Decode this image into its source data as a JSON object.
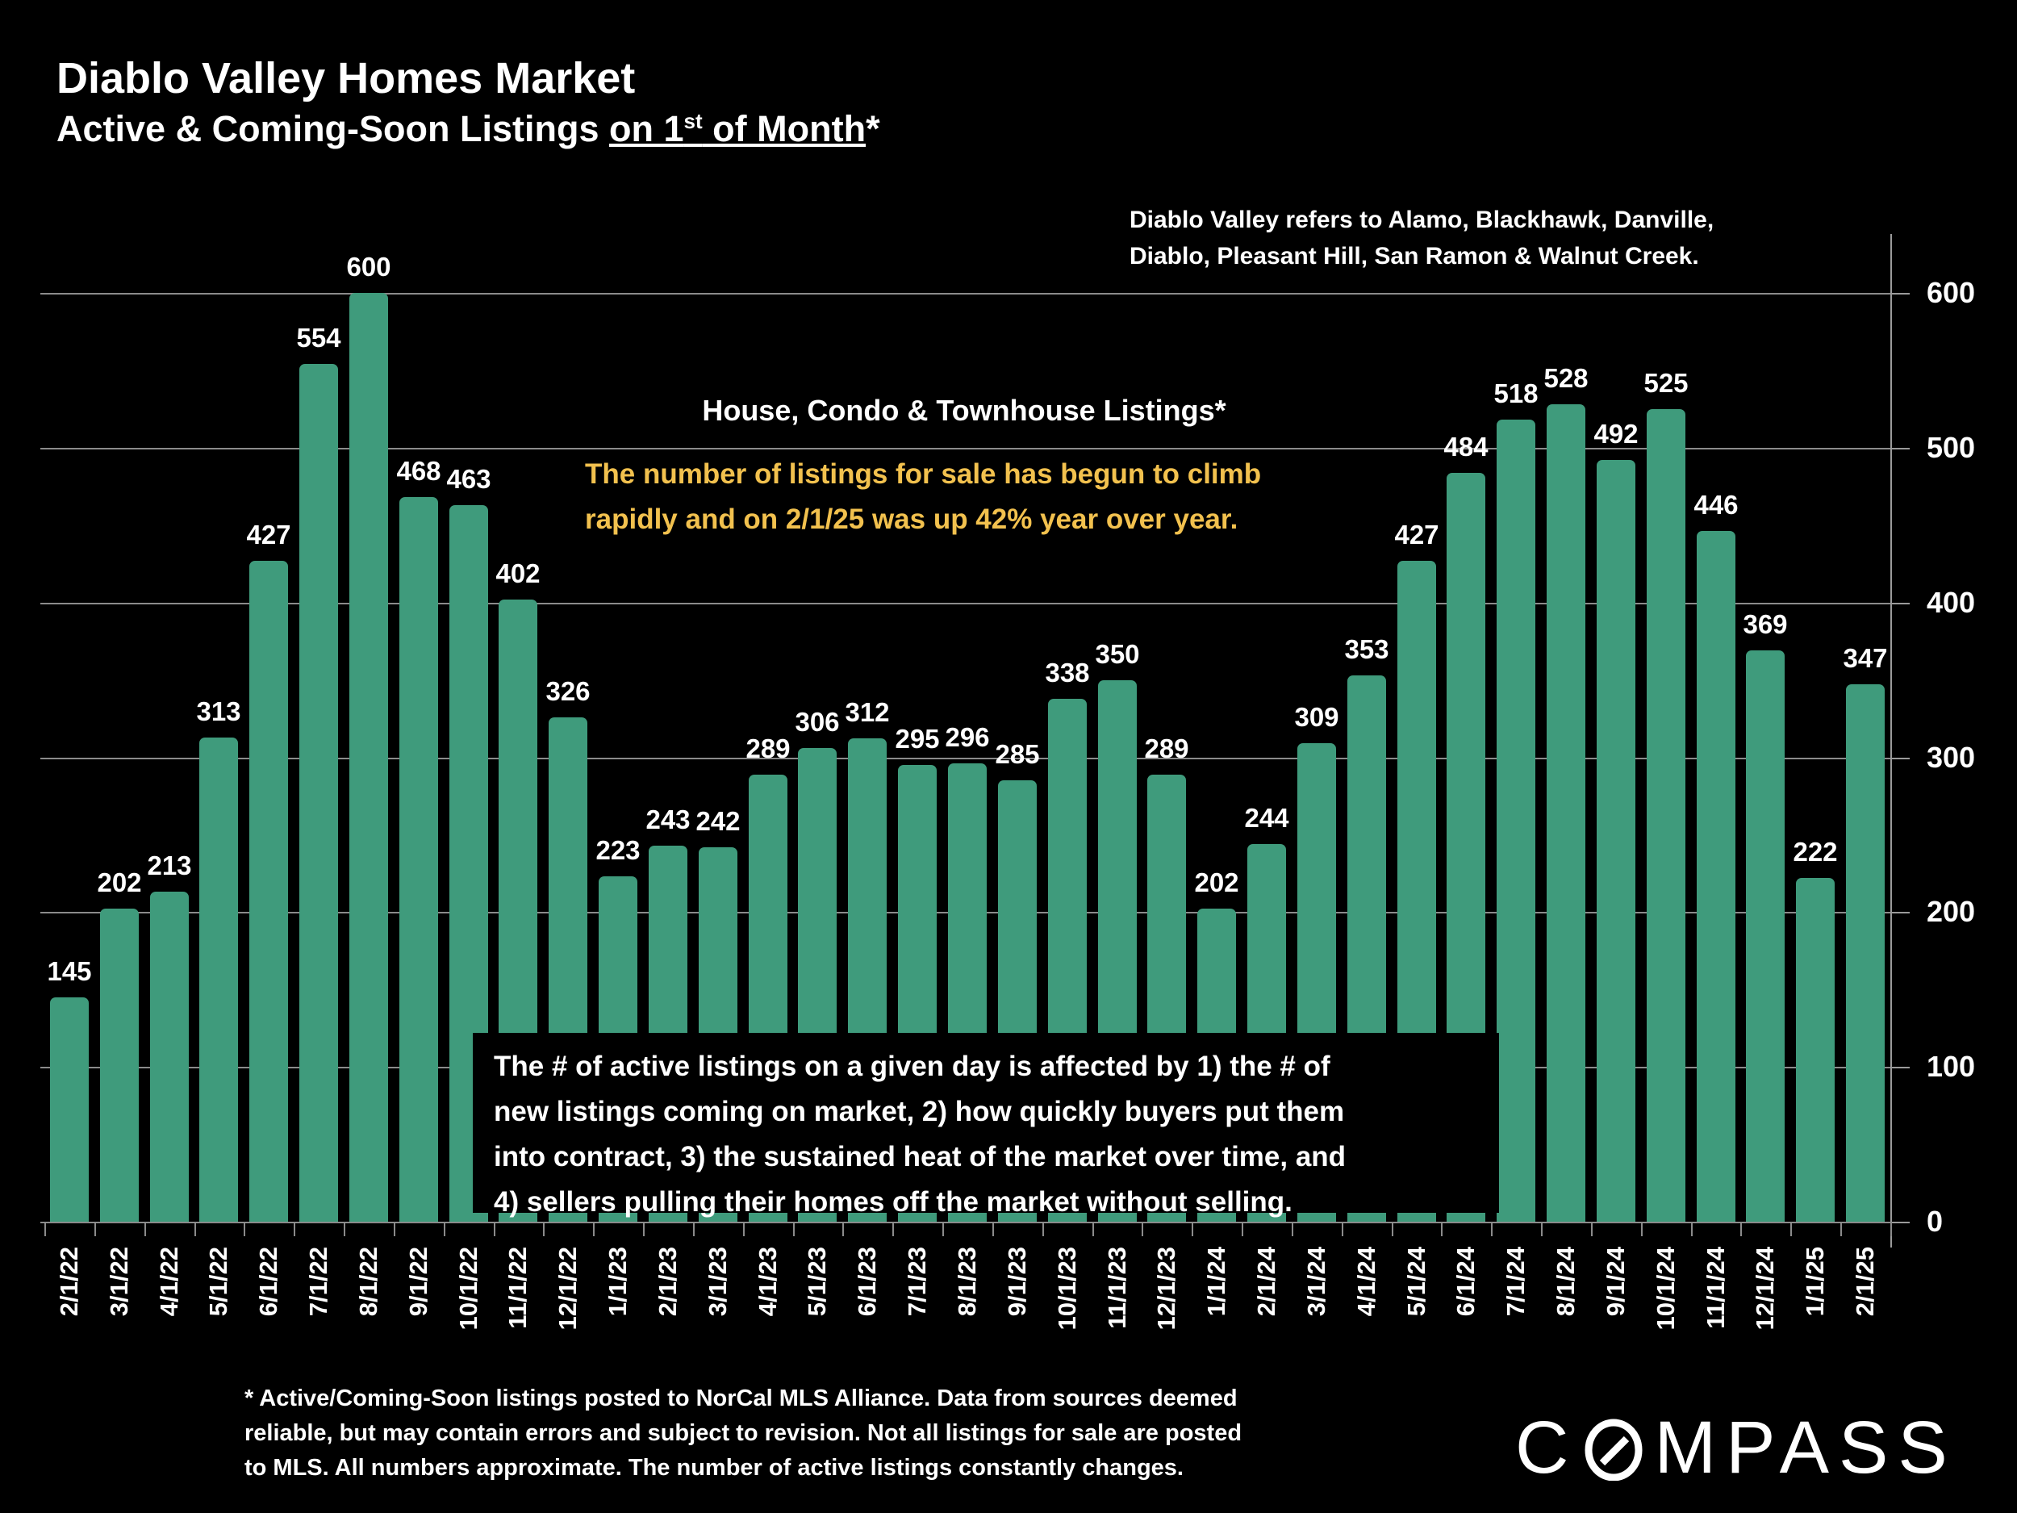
{
  "header": {
    "title": "Diablo Valley Homes Market",
    "subtitle_prefix": "Active & Coming-Soon Listings ",
    "subtitle_underline_pre": "on 1",
    "subtitle_superscript": "st",
    "subtitle_underline_post": " of Month",
    "subtitle_suffix": "*"
  },
  "region_note": {
    "line1": "Diablo Valley refers to Alamo, Blackhawk, Danville,",
    "line2": "Diablo, Pleasant Hill, San Ramon & Walnut Creek."
  },
  "annotations": {
    "listings_label": "House, Condo & Townhouse Listings*",
    "highlight_line1": "The number of listings for sale has begun to climb",
    "highlight_line2": "rapidly and on 2/1/25 was up 42% year over year.",
    "highlight_color": "#F2C14E",
    "info_line1": "The # of active listings on a given day is affected by 1) the # of",
    "info_line2": "new listings coming on market, 2) how quickly buyers put them",
    "info_line3": "into contract, 3) the sustained heat of the market over time, and",
    "info_line4": "4) sellers pulling their homes off the market without selling."
  },
  "footnote": {
    "line1": "* Active/Coming-Soon listings posted to NorCal MLS Alliance.  Data from sources deemed",
    "line2": "reliable, but may contain errors and subject to revision.  Not all listings for sale are posted",
    "line3": "to MLS. All numbers approximate. The number of active listings constantly changes."
  },
  "logo": {
    "prefix": "C",
    "suffix": "MPASS"
  },
  "chart_data": {
    "type": "bar",
    "title": "Diablo Valley Homes Market — Active & Coming-Soon Listings on 1st of Month",
    "xlabel": "",
    "ylabel": "",
    "categories": [
      "2/1/22",
      "3/1/22",
      "4/1/22",
      "5/1/22",
      "6/1/22",
      "7/1/22",
      "8/1/22",
      "9/1/22",
      "10/1/22",
      "11/1/22",
      "12/1/22",
      "1/1/23",
      "2/1/23",
      "3/1/23",
      "4/1/23",
      "5/1/23",
      "6/1/23",
      "7/1/23",
      "8/1/23",
      "9/1/23",
      "10/1/23",
      "11/1/23",
      "12/1/23",
      "1/1/24",
      "2/1/24",
      "3/1/24",
      "4/1/24",
      "5/1/24",
      "6/1/24",
      "7/1/24",
      "8/1/24",
      "9/1/24",
      "10/1/24",
      "11/1/24",
      "12/1/24",
      "1/1/25",
      "2/1/25"
    ],
    "values": [
      145,
      202,
      213,
      313,
      427,
      554,
      600,
      468,
      463,
      402,
      326,
      223,
      243,
      242,
      289,
      306,
      312,
      295,
      296,
      285,
      338,
      350,
      289,
      202,
      244,
      309,
      353,
      427,
      484,
      518,
      528,
      492,
      525,
      446,
      369,
      222,
      347
    ],
    "ylim": [
      0,
      600
    ],
    "yticks": [
      0,
      100,
      200,
      300,
      400,
      500,
      600
    ],
    "grid": true,
    "legend_position": "none",
    "bar_color": "#3F9B7C",
    "gridline_color": "#8B8B8B",
    "value_label_color": "#FFFFFF"
  }
}
